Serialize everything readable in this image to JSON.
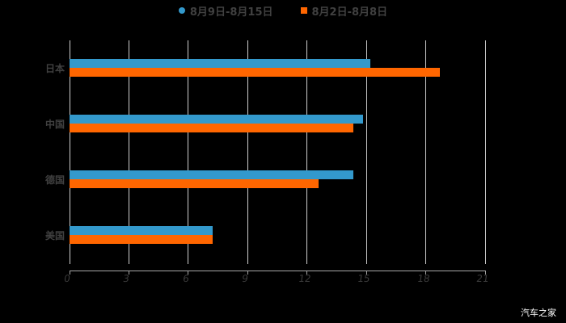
{
  "chart_data": {
    "type": "bar",
    "orientation": "horizontal",
    "title": "",
    "xlabel": "",
    "ylabel": "",
    "categories": [
      "日本",
      "中国",
      "德国",
      "美国"
    ],
    "series": [
      {
        "name": "8月9日-8月15日",
        "color": "#3399CC",
        "marker": "circle",
        "values": [
          15.2,
          14.85,
          14.35,
          7.25
        ]
      },
      {
        "name": "8月2日-8月8日",
        "color": "#FF6600",
        "marker": "square",
        "values": [
          18.7,
          14.35,
          12.6,
          7.25
        ]
      }
    ],
    "xlim": [
      0,
      21
    ],
    "x_ticks": [
      "0",
      "3",
      "6",
      "9",
      "12",
      "15",
      "18",
      "21"
    ],
    "grid": true,
    "legend_position": "top"
  },
  "legend": {
    "items": [
      {
        "label": "8月9日-8月15日",
        "color": "#3399CC"
      },
      {
        "label": "8月2日-8月8日",
        "color": "#FF6600"
      }
    ]
  },
  "watermark": "汽车之家"
}
